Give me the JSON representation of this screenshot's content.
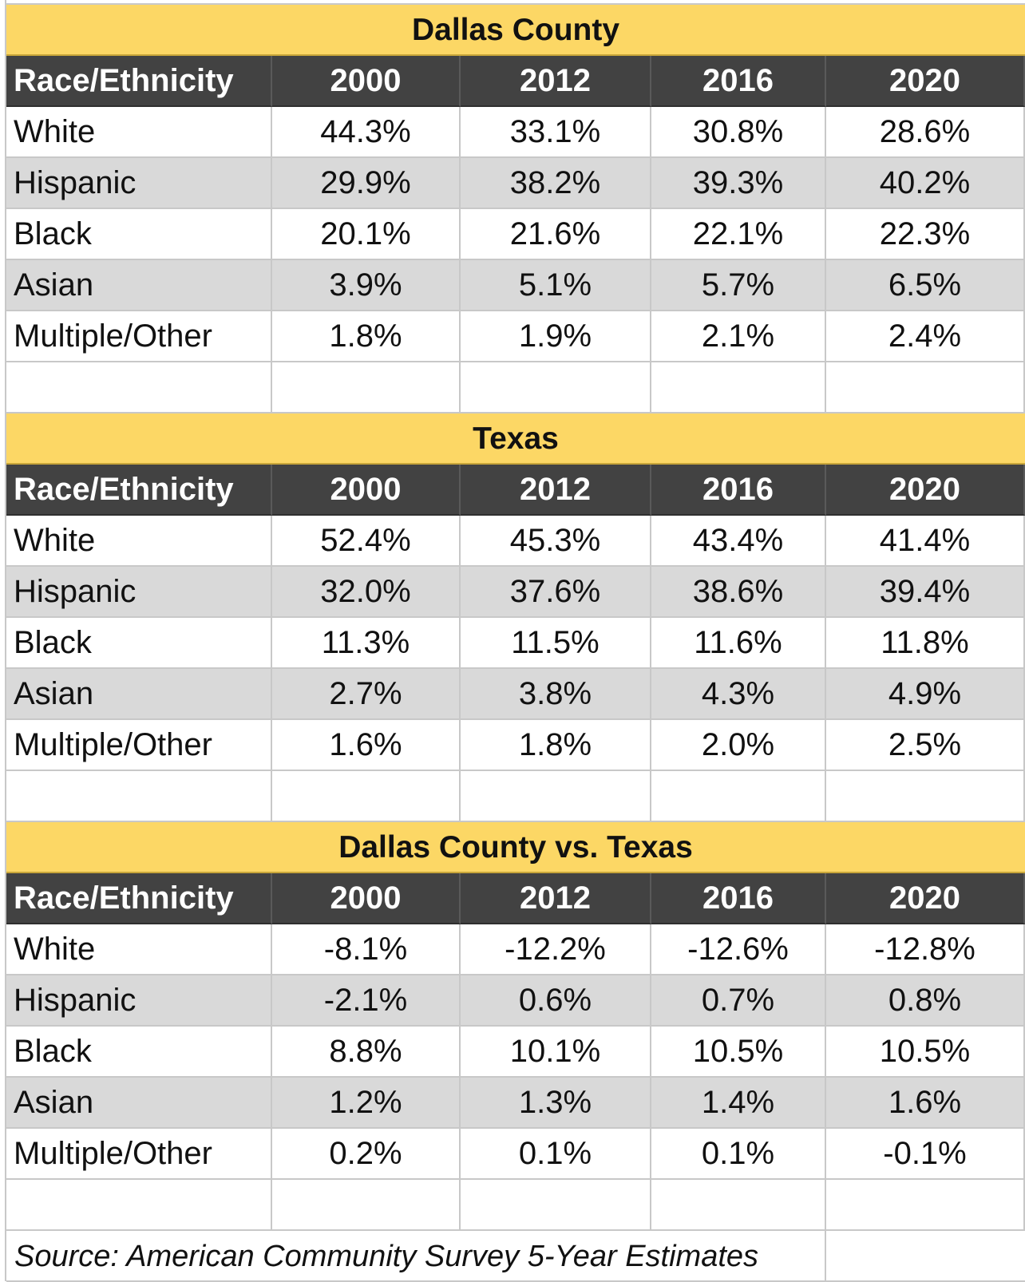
{
  "chart_data": [
    {
      "type": "table",
      "title": "Dallas County",
      "columns": [
        "Race/Ethnicity",
        "2000",
        "2012",
        "2016",
        "2020"
      ],
      "rows": [
        [
          "White",
          "44.3%",
          "33.1%",
          "30.8%",
          "28.6%"
        ],
        [
          "Hispanic",
          "29.9%",
          "38.2%",
          "39.3%",
          "40.2%"
        ],
        [
          "Black",
          "20.1%",
          "21.6%",
          "22.1%",
          "22.3%"
        ],
        [
          "Asian",
          "3.9%",
          "5.1%",
          "5.7%",
          "6.5%"
        ],
        [
          "Multiple/Other",
          "1.8%",
          "1.9%",
          "2.1%",
          "2.4%"
        ]
      ]
    },
    {
      "type": "table",
      "title": "Texas",
      "columns": [
        "Race/Ethnicity",
        "2000",
        "2012",
        "2016",
        "2020"
      ],
      "rows": [
        [
          "White",
          "52.4%",
          "45.3%",
          "43.4%",
          "41.4%"
        ],
        [
          "Hispanic",
          "32.0%",
          "37.6%",
          "38.6%",
          "39.4%"
        ],
        [
          "Black",
          "11.3%",
          "11.5%",
          "11.6%",
          "11.8%"
        ],
        [
          "Asian",
          "2.7%",
          "3.8%",
          "4.3%",
          "4.9%"
        ],
        [
          "Multiple/Other",
          "1.6%",
          "1.8%",
          "2.0%",
          "2.5%"
        ]
      ]
    },
    {
      "type": "table",
      "title": "Dallas County vs. Texas",
      "columns": [
        "Race/Ethnicity",
        "2000",
        "2012",
        "2016",
        "2020"
      ],
      "rows": [
        [
          "White",
          "-8.1%",
          "-12.2%",
          "-12.6%",
          "-12.8%"
        ],
        [
          "Hispanic",
          "-2.1%",
          "0.6%",
          "0.7%",
          "0.8%"
        ],
        [
          "Black",
          "8.8%",
          "10.1%",
          "10.5%",
          "10.5%"
        ],
        [
          "Asian",
          "1.2%",
          "1.3%",
          "1.4%",
          "1.6%"
        ],
        [
          "Multiple/Other",
          "0.2%",
          "0.1%",
          "0.1%",
          "-0.1%"
        ]
      ]
    }
  ],
  "source": "Source: American Community Survey 5-Year Estimates",
  "colors": {
    "title_band": "#fcd765",
    "header_band": "#424242",
    "header_text": "#ffffff",
    "alt_row": "#d9d9d9",
    "gridline": "#c8c8c8"
  }
}
